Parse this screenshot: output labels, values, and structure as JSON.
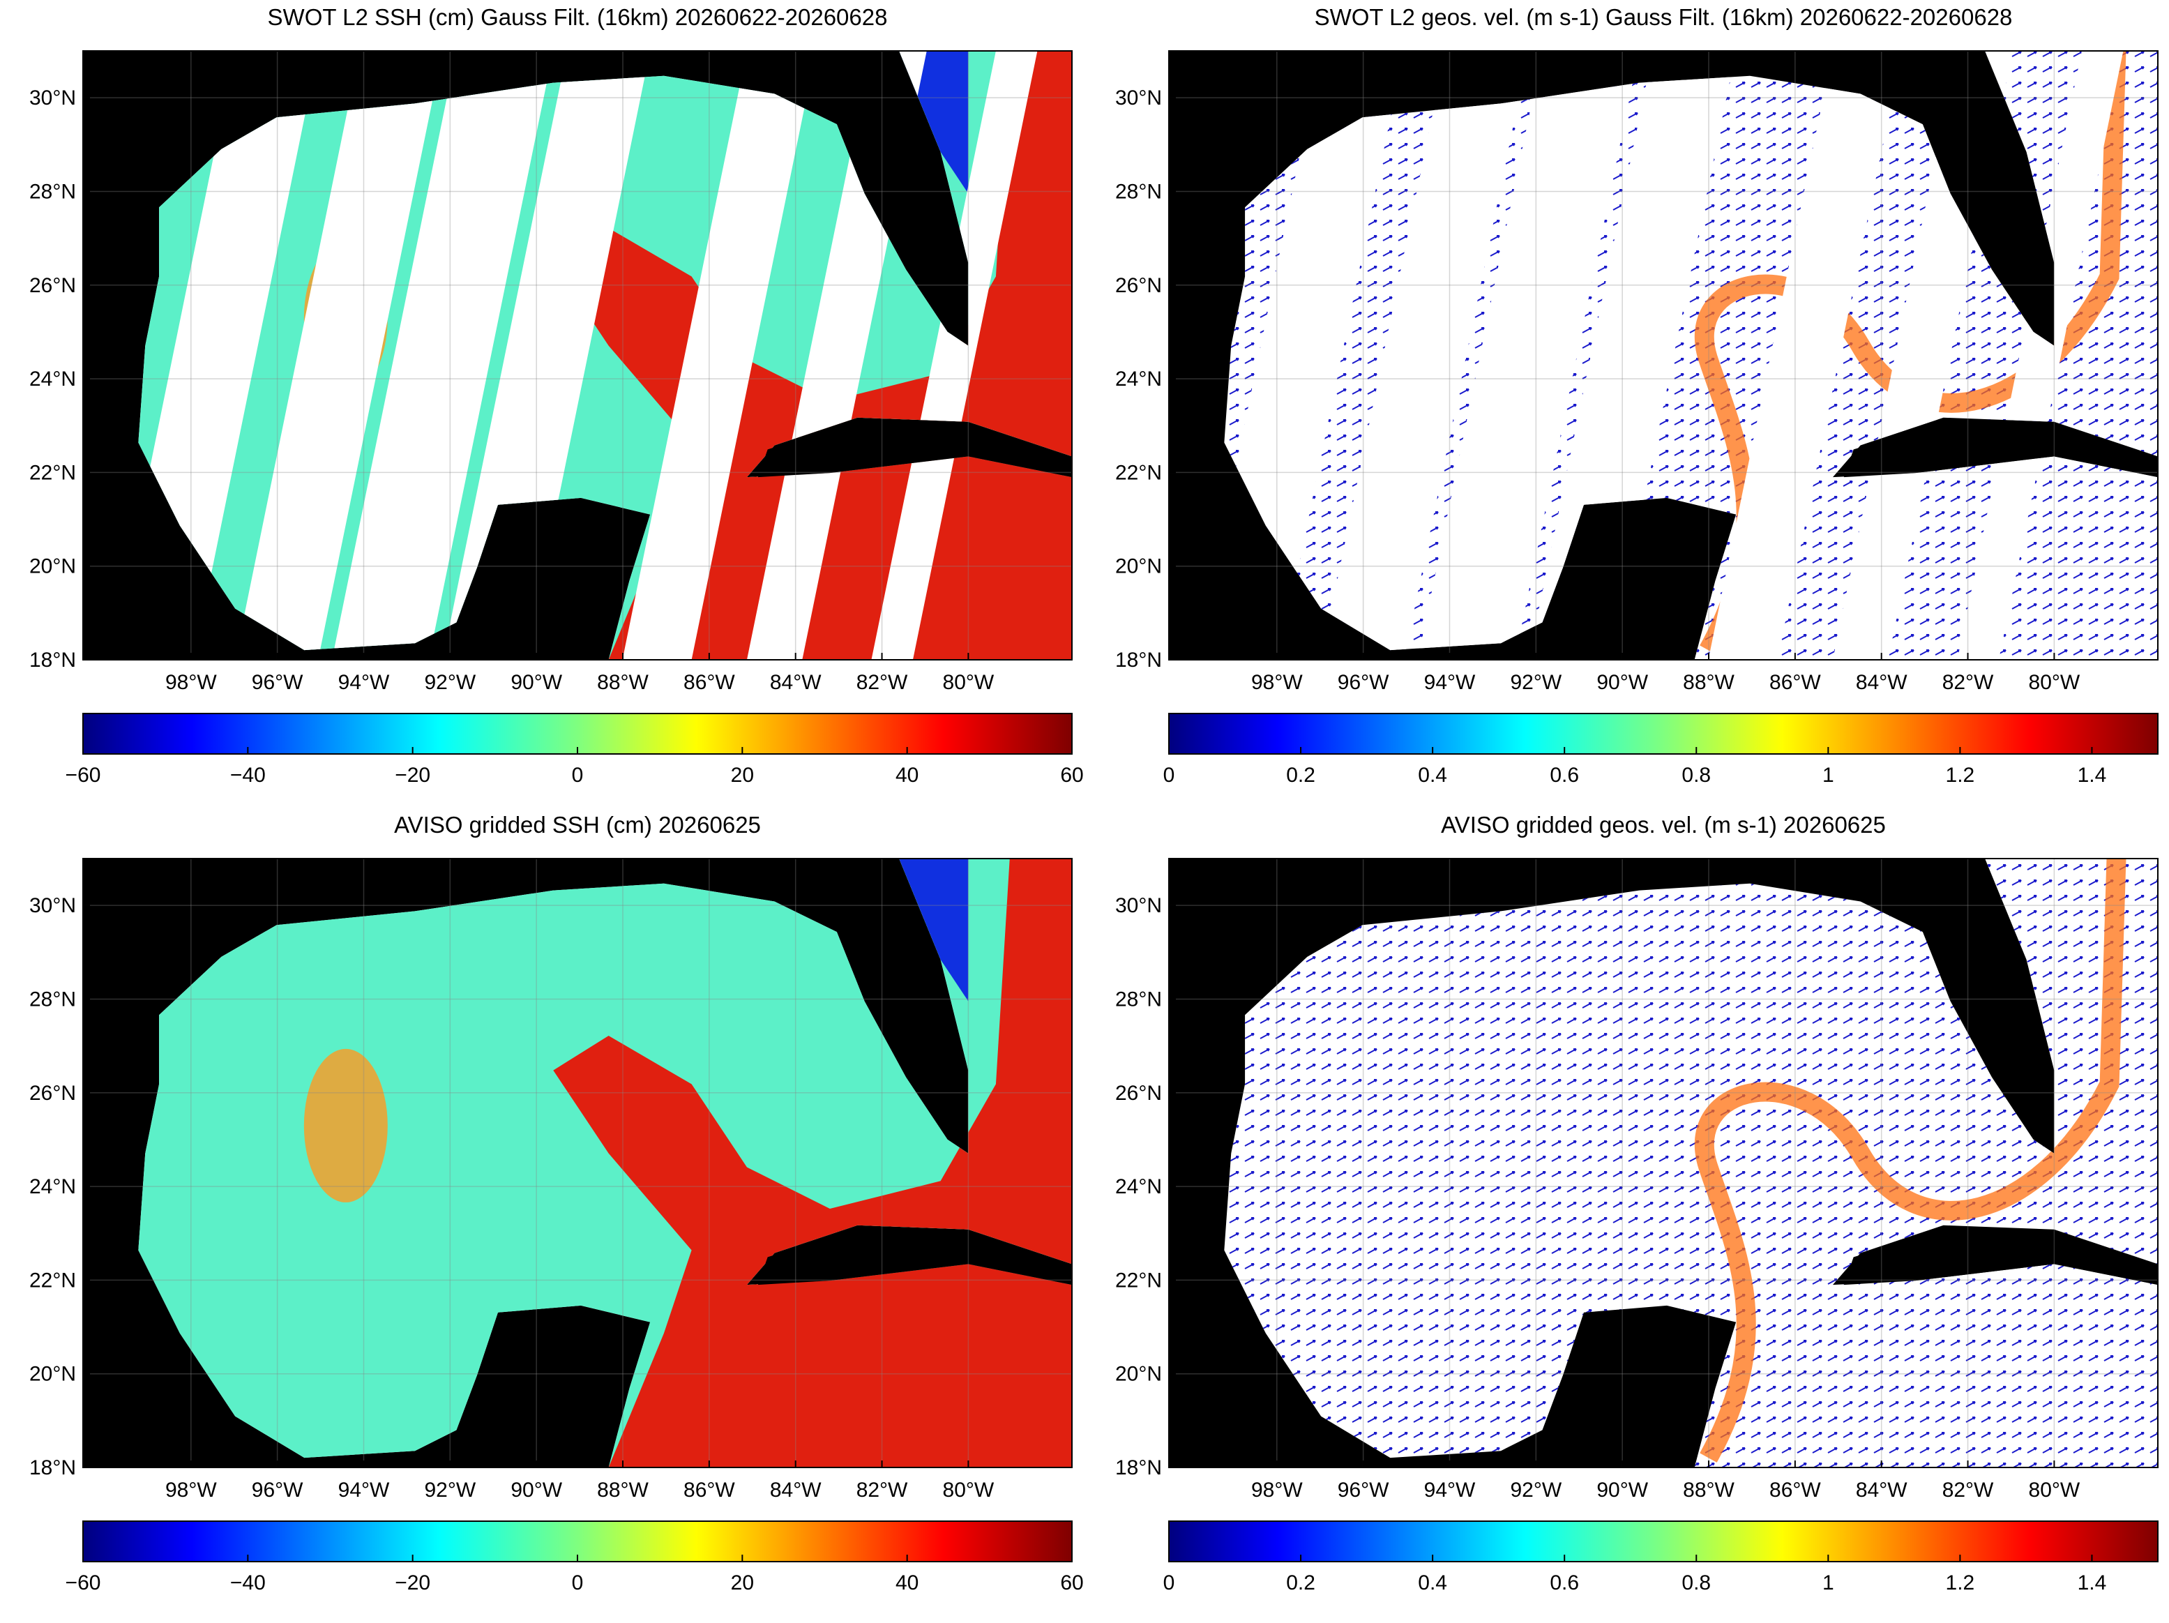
{
  "chart_data": [
    {
      "type": "map",
      "title": "SWOT L2 SSH (cm) Gauss Filt. (16km) 20260622-20260628",
      "field": "ssh-swath",
      "xlim": [
        -100.5,
        -77.6
      ],
      "ylim": [
        18,
        31
      ],
      "xticks": [
        {
          "value": -98,
          "label": "98°W"
        },
        {
          "value": -96,
          "label": "96°W"
        },
        {
          "value": -94,
          "label": "94°W"
        },
        {
          "value": -92,
          "label": "92°W"
        },
        {
          "value": -90,
          "label": "90°W"
        },
        {
          "value": -88,
          "label": "88°W"
        },
        {
          "value": -86,
          "label": "86°W"
        },
        {
          "value": -84,
          "label": "84°W"
        },
        {
          "value": -82,
          "label": "82°W"
        },
        {
          "value": -80,
          "label": "80°W"
        }
      ],
      "yticks": [
        {
          "value": 18,
          "label": "18°N"
        },
        {
          "value": 20,
          "label": "20°N"
        },
        {
          "value": 22,
          "label": "22°N"
        },
        {
          "value": 24,
          "label": "24°N"
        },
        {
          "value": 26,
          "label": "26°N"
        },
        {
          "value": 28,
          "label": "28°N"
        },
        {
          "value": 30,
          "label": "30°N"
        }
      ],
      "colorbar": {
        "lim": [
          -60,
          60
        ],
        "ticks": [
          {
            "value": -60,
            "label": "−60"
          },
          {
            "value": -40,
            "label": "−40"
          },
          {
            "value": -20,
            "label": "−20"
          },
          0,
          20,
          40,
          60
        ]
      }
    },
    {
      "type": "map",
      "title": "SWOT L2 geos. vel. (m s-1) Gauss Filt. (16km) 20260622-20260628",
      "field": "vel-swath",
      "xlim": [
        -100.5,
        -77.6
      ],
      "ylim": [
        18,
        31
      ],
      "xticks": [
        {
          "value": -98,
          "label": "98°W"
        },
        {
          "value": -96,
          "label": "96°W"
        },
        {
          "value": -94,
          "label": "94°W"
        },
        {
          "value": -92,
          "label": "92°W"
        },
        {
          "value": -90,
          "label": "90°W"
        },
        {
          "value": -88,
          "label": "88°W"
        },
        {
          "value": -86,
          "label": "86°W"
        },
        {
          "value": -84,
          "label": "84°W"
        },
        {
          "value": -82,
          "label": "82°W"
        },
        {
          "value": -80,
          "label": "80°W"
        }
      ],
      "yticks": [
        {
          "value": 18,
          "label": "18°N"
        },
        {
          "value": 20,
          "label": "20°N"
        },
        {
          "value": 22,
          "label": "22°N"
        },
        {
          "value": 24,
          "label": "24°N"
        },
        {
          "value": 26,
          "label": "26°N"
        },
        {
          "value": 28,
          "label": "28°N"
        },
        {
          "value": 30,
          "label": "30°N"
        }
      ],
      "colorbar": {
        "lim": [
          0,
          1.5
        ],
        "ticks": [
          0,
          0.2,
          0.4,
          0.6,
          0.8,
          1,
          1.2,
          1.4
        ]
      }
    },
    {
      "type": "map",
      "title": "AVISO gridded SSH (cm) 20260625",
      "field": "ssh-grid",
      "xlim": [
        -100.5,
        -77.6
      ],
      "ylim": [
        18,
        31
      ],
      "xticks": [
        {
          "value": -98,
          "label": "98°W"
        },
        {
          "value": -96,
          "label": "96°W"
        },
        {
          "value": -94,
          "label": "94°W"
        },
        {
          "value": -92,
          "label": "92°W"
        },
        {
          "value": -90,
          "label": "90°W"
        },
        {
          "value": -88,
          "label": "88°W"
        },
        {
          "value": -86,
          "label": "86°W"
        },
        {
          "value": -84,
          "label": "84°W"
        },
        {
          "value": -82,
          "label": "82°W"
        },
        {
          "value": -80,
          "label": "80°W"
        }
      ],
      "yticks": [
        {
          "value": 18,
          "label": "18°N"
        },
        {
          "value": 20,
          "label": "20°N"
        },
        {
          "value": 22,
          "label": "22°N"
        },
        {
          "value": 24,
          "label": "24°N"
        },
        {
          "value": 26,
          "label": "26°N"
        },
        {
          "value": 28,
          "label": "28°N"
        },
        {
          "value": 30,
          "label": "30°N"
        }
      ],
      "colorbar": {
        "lim": [
          -60,
          60
        ],
        "ticks": [
          {
            "value": -60,
            "label": "−60"
          },
          {
            "value": -40,
            "label": "−40"
          },
          {
            "value": -20,
            "label": "−20"
          },
          0,
          20,
          40,
          60
        ]
      }
    },
    {
      "type": "map",
      "title": "AVISO gridded geos. vel. (m s-1)  20260625",
      "field": "vel-grid",
      "xlim": [
        -100.5,
        -77.6
      ],
      "ylim": [
        18,
        31
      ],
      "xticks": [
        {
          "value": -98,
          "label": "98°W"
        },
        {
          "value": -96,
          "label": "96°W"
        },
        {
          "value": -94,
          "label": "94°W"
        },
        {
          "value": -92,
          "label": "92°W"
        },
        {
          "value": -90,
          "label": "90°W"
        },
        {
          "value": -88,
          "label": "88°W"
        },
        {
          "value": -86,
          "label": "86°W"
        },
        {
          "value": -84,
          "label": "84°W"
        },
        {
          "value": -82,
          "label": "82°W"
        },
        {
          "value": -80,
          "label": "80°W"
        }
      ],
      "yticks": [
        {
          "value": 18,
          "label": "18°N"
        },
        {
          "value": 20,
          "label": "20°N"
        },
        {
          "value": 22,
          "label": "22°N"
        },
        {
          "value": 24,
          "label": "24°N"
        },
        {
          "value": 26,
          "label": "26°N"
        },
        {
          "value": 28,
          "label": "28°N"
        },
        {
          "value": 30,
          "label": "30°N"
        }
      ],
      "colorbar": {
        "lim": [
          0,
          1.5
        ],
        "ticks": [
          0,
          0.2,
          0.4,
          0.6,
          0.8,
          1,
          1.2,
          1.4
        ]
      }
    }
  ]
}
